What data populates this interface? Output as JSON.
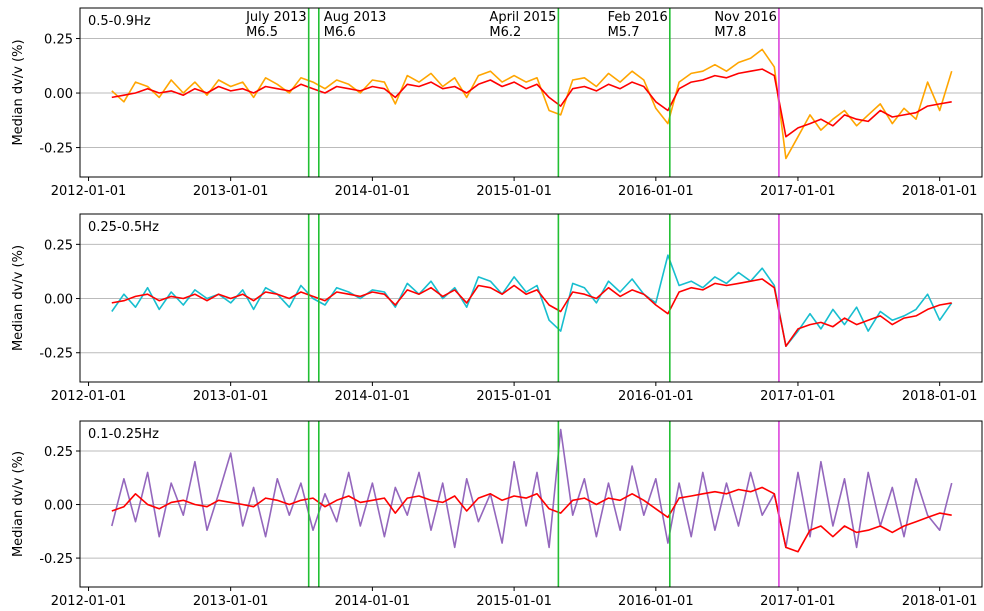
{
  "chart_data": [
    {
      "type": "line",
      "subtitle": "0.5-0.9Hz",
      "ylabel": "Median dv/v (%)",
      "xlim": [
        "2011-12-10",
        "2018-04-20"
      ],
      "ylim": [
        -0.385,
        0.39
      ],
      "xticks": [
        "2012-01-01",
        "2013-01-01",
        "2014-01-01",
        "2015-01-01",
        "2016-01-01",
        "2017-01-01",
        "2018-01-01"
      ],
      "yticks": [
        {
          "value": -0.25,
          "label": "-0.25"
        },
        {
          "value": 0,
          "label": "0.00"
        },
        {
          "value": 0.25,
          "label": "0.25"
        }
      ],
      "grid": true,
      "vlines": [
        {
          "x": "2013-07-21",
          "color": "#22c033",
          "label": "July 2013",
          "magnitude": "M6.5"
        },
        {
          "x": "2013-08-16",
          "color": "#22c033",
          "label": "Aug 2013",
          "magnitude": "M6.6"
        },
        {
          "x": "2015-04-25",
          "color": "#22c033",
          "label": "April 2015",
          "magnitude": "M6.2"
        },
        {
          "x": "2016-02-06",
          "color": "#22c033",
          "label": "Feb 2016",
          "magnitude": "M5.7"
        },
        {
          "x": "2016-11-13",
          "color": "#dd44dd",
          "label": "Nov 2016",
          "magnitude": "M7.8"
        }
      ],
      "x": [
        "2012-03-01",
        "2012-04-01",
        "2012-05-01",
        "2012-06-01",
        "2012-07-01",
        "2012-08-01",
        "2012-09-01",
        "2012-10-01",
        "2012-11-01",
        "2012-12-01",
        "2013-01-01",
        "2013-02-01",
        "2013-03-01",
        "2013-04-01",
        "2013-05-01",
        "2013-06-01",
        "2013-07-01",
        "2013-08-01",
        "2013-09-01",
        "2013-10-01",
        "2013-11-01",
        "2013-12-01",
        "2014-01-01",
        "2014-02-01",
        "2014-03-01",
        "2014-04-01",
        "2014-05-01",
        "2014-06-01",
        "2014-07-01",
        "2014-08-01",
        "2014-09-01",
        "2014-10-01",
        "2014-11-01",
        "2014-12-01",
        "2015-01-01",
        "2015-02-01",
        "2015-03-01",
        "2015-04-01",
        "2015-05-01",
        "2015-06-01",
        "2015-07-01",
        "2015-08-01",
        "2015-09-01",
        "2015-10-01",
        "2015-11-01",
        "2015-12-01",
        "2016-01-01",
        "2016-02-01",
        "2016-03-01",
        "2016-04-01",
        "2016-05-01",
        "2016-06-01",
        "2016-07-01",
        "2016-08-01",
        "2016-09-01",
        "2016-10-01",
        "2016-11-01",
        "2016-12-01",
        "2017-01-01",
        "2017-02-01",
        "2017-03-01",
        "2017-04-01",
        "2017-05-01",
        "2017-06-01",
        "2017-07-01",
        "2017-08-01",
        "2017-09-01",
        "2017-10-01",
        "2017-11-01",
        "2017-12-01",
        "2018-01-01",
        "2018-02-01"
      ],
      "series": [
        {
          "color": "#ffa500",
          "values": [
            0.01,
            -0.04,
            0.05,
            0.03,
            -0.02,
            0.06,
            0.0,
            0.05,
            -0.01,
            0.06,
            0.03,
            0.05,
            -0.02,
            0.07,
            0.04,
            0.0,
            0.07,
            0.05,
            0.02,
            0.06,
            0.04,
            0.0,
            0.06,
            0.05,
            -0.05,
            0.08,
            0.05,
            0.09,
            0.03,
            0.07,
            -0.02,
            0.08,
            0.1,
            0.05,
            0.08,
            0.05,
            0.07,
            -0.08,
            -0.1,
            0.06,
            0.07,
            0.03,
            0.09,
            0.05,
            0.1,
            0.06,
            -0.07,
            -0.14,
            0.05,
            0.09,
            0.1,
            0.13,
            0.1,
            0.14,
            0.16,
            0.2,
            0.12,
            -0.3,
            -0.2,
            -0.1,
            -0.17,
            -0.12,
            -0.08,
            -0.15,
            -0.1,
            -0.05,
            -0.14,
            -0.07,
            -0.12,
            0.05,
            -0.08,
            0.1
          ]
        },
        {
          "color": "#ff0000",
          "values": [
            -0.02,
            -0.01,
            0.0,
            0.02,
            0.0,
            0.01,
            -0.01,
            0.02,
            0.0,
            0.03,
            0.01,
            0.02,
            0.0,
            0.03,
            0.02,
            0.01,
            0.04,
            0.02,
            0.0,
            0.03,
            0.02,
            0.01,
            0.03,
            0.02,
            -0.02,
            0.04,
            0.03,
            0.05,
            0.02,
            0.03,
            0.0,
            0.04,
            0.06,
            0.03,
            0.05,
            0.02,
            0.04,
            -0.02,
            -0.06,
            0.02,
            0.03,
            0.01,
            0.04,
            0.02,
            0.05,
            0.03,
            -0.04,
            -0.08,
            0.02,
            0.05,
            0.06,
            0.08,
            0.07,
            0.09,
            0.1,
            0.11,
            0.08,
            -0.2,
            -0.16,
            -0.14,
            -0.12,
            -0.15,
            -0.1,
            -0.12,
            -0.13,
            -0.08,
            -0.11,
            -0.1,
            -0.09,
            -0.06,
            -0.05,
            -0.04
          ]
        }
      ]
    },
    {
      "type": "line",
      "subtitle": "0.25-0.5Hz",
      "ylabel": "Median dv/v (%)",
      "xlim": [
        "2011-12-10",
        "2018-04-20"
      ],
      "ylim": [
        -0.385,
        0.39
      ],
      "xticks": [
        "2012-01-01",
        "2013-01-01",
        "2014-01-01",
        "2015-01-01",
        "2016-01-01",
        "2017-01-01",
        "2018-01-01"
      ],
      "yticks": [
        {
          "value": -0.25,
          "label": "-0.25"
        },
        {
          "value": 0,
          "label": "0.00"
        },
        {
          "value": 0.25,
          "label": "0.25"
        }
      ],
      "grid": true,
      "vlines": [
        {
          "x": "2013-07-21",
          "color": "#22c033"
        },
        {
          "x": "2013-08-16",
          "color": "#22c033"
        },
        {
          "x": "2015-04-25",
          "color": "#22c033"
        },
        {
          "x": "2016-02-06",
          "color": "#22c033"
        },
        {
          "x": "2016-11-13",
          "color": "#dd44dd"
        }
      ],
      "x": [
        "2012-03-01",
        "2012-04-01",
        "2012-05-01",
        "2012-06-01",
        "2012-07-01",
        "2012-08-01",
        "2012-09-01",
        "2012-10-01",
        "2012-11-01",
        "2012-12-01",
        "2013-01-01",
        "2013-02-01",
        "2013-03-01",
        "2013-04-01",
        "2013-05-01",
        "2013-06-01",
        "2013-07-01",
        "2013-08-01",
        "2013-09-01",
        "2013-10-01",
        "2013-11-01",
        "2013-12-01",
        "2014-01-01",
        "2014-02-01",
        "2014-03-01",
        "2014-04-01",
        "2014-05-01",
        "2014-06-01",
        "2014-07-01",
        "2014-08-01",
        "2014-09-01",
        "2014-10-01",
        "2014-11-01",
        "2014-12-01",
        "2015-01-01",
        "2015-02-01",
        "2015-03-01",
        "2015-04-01",
        "2015-05-01",
        "2015-06-01",
        "2015-07-01",
        "2015-08-01",
        "2015-09-01",
        "2015-10-01",
        "2015-11-01",
        "2015-12-01",
        "2016-01-01",
        "2016-02-01",
        "2016-03-01",
        "2016-04-01",
        "2016-05-01",
        "2016-06-01",
        "2016-07-01",
        "2016-08-01",
        "2016-09-01",
        "2016-10-01",
        "2016-11-01",
        "2016-12-01",
        "2017-01-01",
        "2017-02-01",
        "2017-03-01",
        "2017-04-01",
        "2017-05-01",
        "2017-06-01",
        "2017-07-01",
        "2017-08-01",
        "2017-09-01",
        "2017-10-01",
        "2017-11-01",
        "2017-12-01",
        "2018-01-01",
        "2018-02-01"
      ],
      "series": [
        {
          "color": "#17becf",
          "values": [
            -0.06,
            0.02,
            -0.04,
            0.05,
            -0.05,
            0.03,
            -0.03,
            0.04,
            0.0,
            0.02,
            -0.02,
            0.04,
            -0.05,
            0.05,
            0.02,
            -0.04,
            0.06,
            0.0,
            -0.03,
            0.05,
            0.03,
            0.0,
            0.04,
            0.03,
            -0.04,
            0.07,
            0.02,
            0.08,
            0.0,
            0.05,
            -0.04,
            0.1,
            0.08,
            0.02,
            0.1,
            0.03,
            0.06,
            -0.1,
            -0.15,
            0.07,
            0.05,
            -0.02,
            0.08,
            0.03,
            0.09,
            0.02,
            -0.02,
            0.2,
            0.06,
            0.08,
            0.05,
            0.1,
            0.07,
            0.12,
            0.08,
            0.14,
            0.06,
            -0.22,
            -0.15,
            -0.07,
            -0.14,
            -0.05,
            -0.12,
            -0.04,
            -0.15,
            -0.06,
            -0.1,
            -0.08,
            -0.05,
            0.02,
            -0.1,
            -0.02
          ]
        },
        {
          "color": "#ff0000",
          "values": [
            -0.02,
            -0.01,
            0.01,
            0.02,
            -0.01,
            0.01,
            0.0,
            0.02,
            -0.01,
            0.02,
            0.0,
            0.02,
            -0.01,
            0.03,
            0.02,
            0.0,
            0.03,
            0.01,
            -0.01,
            0.03,
            0.02,
            0.01,
            0.03,
            0.02,
            -0.03,
            0.04,
            0.02,
            0.05,
            0.01,
            0.04,
            -0.02,
            0.06,
            0.05,
            0.02,
            0.06,
            0.02,
            0.04,
            -0.03,
            -0.06,
            0.03,
            0.02,
            0.0,
            0.05,
            0.01,
            0.04,
            0.02,
            -0.03,
            -0.07,
            0.03,
            0.05,
            0.04,
            0.07,
            0.06,
            0.07,
            0.08,
            0.09,
            0.05,
            -0.22,
            -0.14,
            -0.12,
            -0.11,
            -0.13,
            -0.09,
            -0.12,
            -0.1,
            -0.08,
            -0.12,
            -0.09,
            -0.08,
            -0.05,
            -0.03,
            -0.02
          ]
        }
      ]
    },
    {
      "type": "line",
      "subtitle": "0.1-0.25Hz",
      "ylabel": "Median dv/v (%)",
      "xlim": [
        "2011-12-10",
        "2018-04-20"
      ],
      "ylim": [
        -0.385,
        0.39
      ],
      "xticks": [
        "2012-01-01",
        "2013-01-01",
        "2014-01-01",
        "2015-01-01",
        "2016-01-01",
        "2017-01-01",
        "2018-01-01"
      ],
      "yticks": [
        {
          "value": -0.25,
          "label": "-0.25"
        },
        {
          "value": 0,
          "label": "0.00"
        },
        {
          "value": 0.25,
          "label": "0.25"
        }
      ],
      "grid": true,
      "vlines": [
        {
          "x": "2013-07-21",
          "color": "#22c033"
        },
        {
          "x": "2013-08-16",
          "color": "#22c033"
        },
        {
          "x": "2015-04-25",
          "color": "#22c033"
        },
        {
          "x": "2016-02-06",
          "color": "#22c033"
        },
        {
          "x": "2016-11-13",
          "color": "#dd44dd"
        }
      ],
      "x": [
        "2012-03-01",
        "2012-04-01",
        "2012-05-01",
        "2012-06-01",
        "2012-07-01",
        "2012-08-01",
        "2012-09-01",
        "2012-10-01",
        "2012-11-01",
        "2012-12-01",
        "2013-01-01",
        "2013-02-01",
        "2013-03-01",
        "2013-04-01",
        "2013-05-01",
        "2013-06-01",
        "2013-07-01",
        "2013-08-01",
        "2013-09-01",
        "2013-10-01",
        "2013-11-01",
        "2013-12-01",
        "2014-01-01",
        "2014-02-01",
        "2014-03-01",
        "2014-04-01",
        "2014-05-01",
        "2014-06-01",
        "2014-07-01",
        "2014-08-01",
        "2014-09-01",
        "2014-10-01",
        "2014-11-01",
        "2014-12-01",
        "2015-01-01",
        "2015-02-01",
        "2015-03-01",
        "2015-04-01",
        "2015-05-01",
        "2015-06-01",
        "2015-07-01",
        "2015-08-01",
        "2015-09-01",
        "2015-10-01",
        "2015-11-01",
        "2015-12-01",
        "2016-01-01",
        "2016-02-01",
        "2016-03-01",
        "2016-04-01",
        "2016-05-01",
        "2016-06-01",
        "2016-07-01",
        "2016-08-01",
        "2016-09-01",
        "2016-10-01",
        "2016-11-01",
        "2016-12-01",
        "2017-01-01",
        "2017-02-01",
        "2017-03-01",
        "2017-04-01",
        "2017-05-01",
        "2017-06-01",
        "2017-07-01",
        "2017-08-01",
        "2017-09-01",
        "2017-10-01",
        "2017-11-01",
        "2017-12-01",
        "2018-01-01",
        "2018-02-01"
      ],
      "series": [
        {
          "color": "#9467bd",
          "values": [
            -0.1,
            0.12,
            -0.08,
            0.15,
            -0.15,
            0.1,
            -0.05,
            0.2,
            -0.12,
            0.05,
            0.24,
            -0.1,
            0.08,
            -0.15,
            0.12,
            -0.05,
            0.1,
            -0.12,
            0.05,
            -0.08,
            0.15,
            -0.1,
            0.1,
            -0.15,
            0.08,
            -0.05,
            0.15,
            -0.12,
            0.1,
            -0.2,
            0.12,
            -0.08,
            0.05,
            -0.18,
            0.2,
            -0.1,
            0.15,
            -0.2,
            0.35,
            -0.05,
            0.12,
            -0.15,
            0.1,
            -0.12,
            0.18,
            -0.05,
            0.12,
            -0.18,
            0.1,
            -0.15,
            0.15,
            -0.12,
            0.1,
            -0.1,
            0.15,
            -0.05,
            0.05,
            -0.2,
            0.15,
            -0.15,
            0.2,
            -0.1,
            0.12,
            -0.2,
            0.15,
            -0.1,
            0.08,
            -0.15,
            0.12,
            -0.05,
            -0.12,
            0.1
          ]
        },
        {
          "color": "#ff0000",
          "values": [
            -0.03,
            -0.01,
            0.05,
            0.0,
            -0.02,
            0.01,
            0.02,
            0.0,
            -0.01,
            0.02,
            0.01,
            0.0,
            -0.01,
            0.03,
            0.02,
            0.0,
            0.02,
            0.03,
            -0.01,
            0.02,
            0.04,
            0.01,
            0.02,
            0.03,
            -0.04,
            0.03,
            0.04,
            0.02,
            0.01,
            0.04,
            -0.03,
            0.03,
            0.05,
            0.02,
            0.04,
            0.03,
            0.05,
            -0.02,
            -0.04,
            0.02,
            0.03,
            0.0,
            0.03,
            0.02,
            0.05,
            0.02,
            -0.02,
            -0.06,
            0.03,
            0.04,
            0.05,
            0.06,
            0.05,
            0.07,
            0.06,
            0.08,
            0.05,
            -0.2,
            -0.22,
            -0.12,
            -0.1,
            -0.15,
            -0.1,
            -0.13,
            -0.12,
            -0.1,
            -0.13,
            -0.1,
            -0.08,
            -0.06,
            -0.04,
            -0.05
          ]
        }
      ]
    }
  ]
}
